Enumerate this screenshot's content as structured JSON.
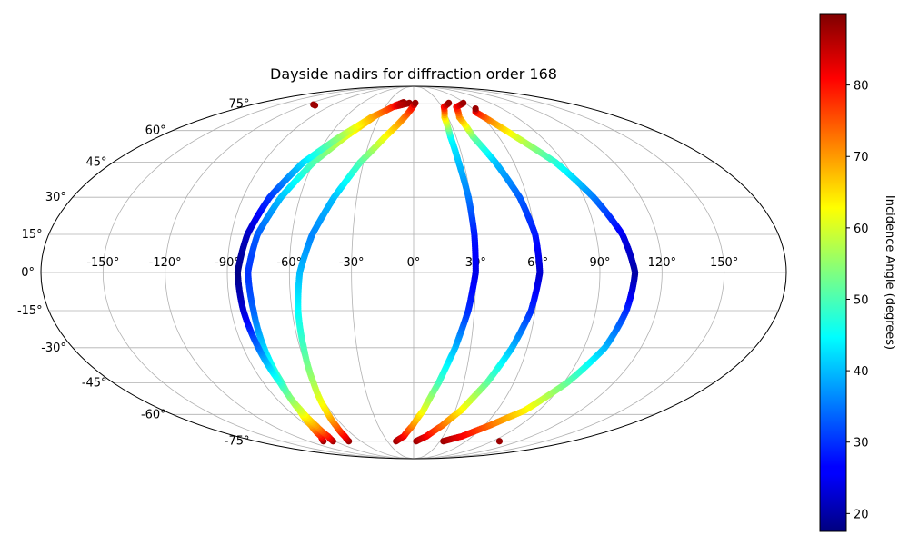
{
  "chart_data": {
    "type": "scatter",
    "projection": "mollweide",
    "title": "Dayside nadirs for diffraction order 168",
    "xlabel": "",
    "ylabel": "",
    "grid": true,
    "lon_ticks": [
      {
        "value": -150,
        "label": "-150°"
      },
      {
        "value": -120,
        "label": "-120°"
      },
      {
        "value": -90,
        "label": "-90°"
      },
      {
        "value": -60,
        "label": "-60°"
      },
      {
        "value": -30,
        "label": "-30°"
      },
      {
        "value": 0,
        "label": "0°"
      },
      {
        "value": 30,
        "label": "30°"
      },
      {
        "value": 60,
        "label": "60°"
      },
      {
        "value": 90,
        "label": "90°"
      },
      {
        "value": 120,
        "label": "120°"
      },
      {
        "value": 150,
        "label": "150°"
      }
    ],
    "lat_ticks": [
      {
        "value": 75,
        "label": "75°"
      },
      {
        "value": 60,
        "label": "60°"
      },
      {
        "value": 45,
        "label": "45°"
      },
      {
        "value": 30,
        "label": "30°"
      },
      {
        "value": 15,
        "label": "15°"
      },
      {
        "value": 0,
        "label": "0°"
      },
      {
        "value": -15,
        "label": "-15°"
      },
      {
        "value": -30,
        "label": "-30°"
      },
      {
        "value": -45,
        "label": "-45°"
      },
      {
        "value": -60,
        "label": "-60°"
      },
      {
        "value": -75,
        "label": "-75°"
      }
    ],
    "colorbar": {
      "label": "Incidence Angle (degrees)",
      "colormap": "jet",
      "range": [
        17.5,
        90
      ],
      "ticks": [
        {
          "value": 20,
          "label": "20"
        },
        {
          "value": 30,
          "label": "30"
        },
        {
          "value": 40,
          "label": "40"
        },
        {
          "value": 50,
          "label": "50"
        },
        {
          "value": 60,
          "label": "60"
        },
        {
          "value": 70,
          "label": "70"
        },
        {
          "value": 80,
          "label": "80"
        }
      ]
    },
    "series": [
      {
        "values": [
          [
            -103,
            -75,
            88
          ],
          [
            -94,
            -72,
            80
          ],
          [
            -87,
            -66,
            70
          ],
          [
            -82,
            -58,
            60
          ],
          [
            -79,
            -45,
            50
          ],
          [
            -79,
            -30,
            42
          ],
          [
            -79,
            -15,
            34
          ],
          [
            -80,
            0,
            30
          ],
          [
            -77,
            15,
            33
          ],
          [
            -70,
            30,
            40
          ],
          [
            -60,
            45,
            50
          ],
          [
            -48,
            57,
            60
          ],
          [
            -34,
            68,
            70
          ],
          [
            -20,
            74,
            80
          ],
          [
            -12,
            76,
            88
          ]
        ]
      },
      {
        "values": [
          [
            -92,
            -75,
            87
          ],
          [
            -87,
            -72,
            80
          ],
          [
            -83,
            -66,
            70
          ],
          [
            -81,
            -58,
            60
          ],
          [
            -80,
            -45,
            48
          ],
          [
            -82,
            -30,
            35
          ],
          [
            -84,
            -15,
            24
          ],
          [
            -85,
            0,
            18
          ],
          [
            -82,
            15,
            22
          ],
          [
            -76,
            30,
            30
          ],
          [
            -66,
            45,
            42
          ],
          [
            -52,
            57,
            55
          ],
          [
            -37,
            67,
            68
          ],
          [
            -22,
            73,
            78
          ],
          [
            -15,
            74,
            85
          ],
          [
            -5,
            75.5,
            88
          ]
        ]
      },
      {
        "values": [
          [
            -74,
            -75,
            88
          ],
          [
            -70,
            -72,
            82
          ],
          [
            -66,
            -66,
            74
          ],
          [
            -63,
            -58,
            65
          ],
          [
            -60,
            -45,
            57
          ],
          [
            -58,
            -30,
            50
          ],
          [
            -57,
            -15,
            45
          ],
          [
            -55,
            0,
            40
          ],
          [
            -50,
            15,
            36
          ],
          [
            -42,
            30,
            40
          ],
          [
            -32,
            45,
            50
          ],
          [
            -20,
            57,
            62
          ],
          [
            -8,
            67,
            72
          ],
          [
            -1,
            73,
            80
          ],
          [
            2,
            75.5,
            88
          ]
        ]
      },
      {
        "values": [
          [
            -20,
            -75,
            88
          ],
          [
            -10,
            -72,
            82
          ],
          [
            -1,
            -66,
            72
          ],
          [
            7,
            -58,
            62
          ],
          [
            15,
            -45,
            50
          ],
          [
            22,
            -30,
            40
          ],
          [
            27,
            -15,
            30
          ],
          [
            30,
            0,
            25
          ],
          [
            30,
            15,
            28
          ],
          [
            29,
            30,
            35
          ],
          [
            27,
            45,
            40
          ],
          [
            26,
            57,
            45
          ],
          [
            27,
            67,
            65
          ],
          [
            32,
            73,
            80
          ],
          [
            41,
            75.5,
            88
          ]
        ]
      },
      {
        "values": [
          [
            3,
            -75,
            88
          ],
          [
            13,
            -72,
            82
          ],
          [
            24,
            -66,
            74
          ],
          [
            34,
            -58,
            64
          ],
          [
            44,
            -45,
            52
          ],
          [
            52,
            -30,
            40
          ],
          [
            58,
            -15,
            30
          ],
          [
            61,
            0,
            23
          ],
          [
            60,
            15,
            28
          ],
          [
            56,
            30,
            33
          ],
          [
            49,
            45,
            40
          ],
          [
            42,
            57,
            52
          ],
          [
            40,
            67,
            70
          ],
          [
            45,
            73,
            80
          ],
          [
            58,
            75.5,
            88
          ]
        ]
      },
      {
        "values": [
          [
            34,
            -75,
            88
          ],
          [
            49,
            -72,
            82
          ],
          [
            64,
            -66,
            74
          ],
          [
            80,
            -58,
            64
          ],
          [
            92,
            -45,
            52
          ],
          [
            101,
            -30,
            40
          ],
          [
            105,
            -15,
            30
          ],
          [
            107,
            0,
            20
          ],
          [
            103,
            15,
            25
          ],
          [
            95,
            30,
            35
          ],
          [
            85,
            45,
            47
          ],
          [
            72,
            57,
            60
          ],
          [
            63,
            66,
            72
          ],
          [
            59,
            70,
            80
          ],
          [
            63,
            72,
            88
          ]
        ]
      },
      {
        "values": [
          [
            -108,
            74,
            88
          ],
          [
            -112,
            74.5,
            88
          ]
        ]
      },
      {
        "values": [
          [
            98,
            -75,
            88
          ]
        ]
      }
    ]
  }
}
